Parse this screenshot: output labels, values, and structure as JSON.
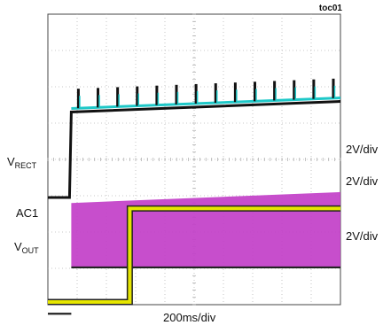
{
  "header": {
    "figure_tag": "toc01"
  },
  "chart_data": {
    "type": "line",
    "title": "",
    "xlabel": "200ms/div",
    "time_per_div_ms": 200,
    "divisions": {
      "x": 10,
      "y": 8
    },
    "grid": true,
    "x_unit": "ms",
    "channels": [
      {
        "name": "V",
        "subscript": "RECT",
        "scale": "2V/div",
        "color": "#1ec8c8",
        "points": [
          [
            0,
            0
          ],
          [
            160,
            0
          ],
          [
            180,
            5.0
          ],
          [
            1000,
            5.0
          ]
        ]
      },
      {
        "name": "AC1",
        "subscript": "",
        "scale": "2V/div",
        "color": "#c832c8",
        "points": [
          [
            0,
            0
          ],
          [
            160,
            0
          ],
          [
            165,
            6.0
          ],
          [
            1000,
            6.6
          ]
        ]
      },
      {
        "name": "V",
        "subscript": "OUT",
        "scale": "2V/div",
        "color": "#e6e600",
        "points": [
          [
            0,
            0
          ],
          [
            560,
            0
          ],
          [
            565,
            5.2
          ],
          [
            1000,
            5.2
          ]
        ]
      }
    ]
  }
}
